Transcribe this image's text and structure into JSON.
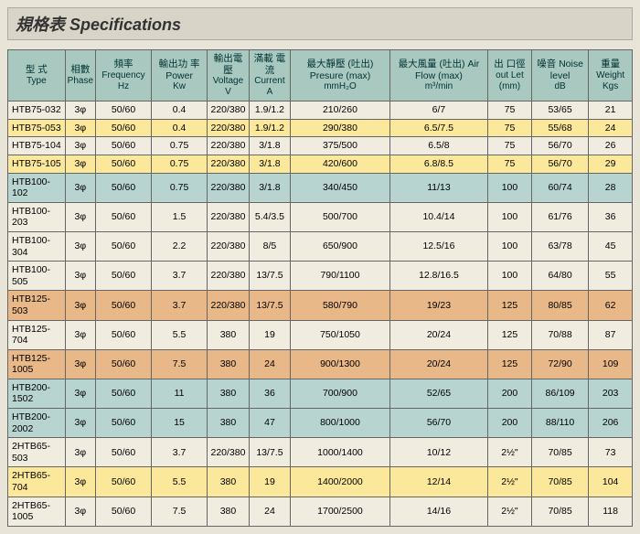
{
  "title": "規格表 Specifications",
  "headers": [
    {
      "cn": "型 式",
      "en": "Type"
    },
    {
      "cn": "相數",
      "en": "Phase"
    },
    {
      "cn": "頻率",
      "en": "Frequency Hz"
    },
    {
      "cn": "輸出功 率Power",
      "en": "Kw"
    },
    {
      "cn": "輸出電壓",
      "en": "Voltage V"
    },
    {
      "cn": "滿載 電流",
      "en": "Current A"
    },
    {
      "cn": "最大靜壓 (吐出) Presure (max)",
      "en": "mmH₂O"
    },
    {
      "cn": "最大風量 (吐出) Air Flow (max)",
      "en": "m³/min"
    },
    {
      "cn": "出 口徑",
      "en": "out Let (mm)"
    },
    {
      "cn": "噪音 Noise level",
      "en": "dB"
    },
    {
      "cn": "重量",
      "en": "Weight Kgs"
    }
  ],
  "rows": [
    {
      "cls": "white",
      "c": [
        "HTB75-032",
        "3φ",
        "50/60",
        "0.4",
        "220/380",
        "1.9/1.2",
        "210/260",
        "6/7",
        "75",
        "53/65",
        "21"
      ]
    },
    {
      "cls": "yellow",
      "c": [
        "HTB75-053",
        "3φ",
        "50/60",
        "0.4",
        "220/380",
        "1.9/1.2",
        "290/380",
        "6.5/7.5",
        "75",
        "55/68",
        "24"
      ]
    },
    {
      "cls": "white",
      "c": [
        "HTB75-104",
        "3φ",
        "50/60",
        "0.75",
        "220/380",
        "3/1.8",
        "375/500",
        "6.5/8",
        "75",
        "56/70",
        "26"
      ]
    },
    {
      "cls": "yellow",
      "c": [
        "HTB75-105",
        "3φ",
        "50/60",
        "0.75",
        "220/380",
        "3/1.8",
        "420/600",
        "6.8/8.5",
        "75",
        "56/70",
        "29"
      ]
    },
    {
      "cls": "blue",
      "c": [
        "HTB100-102",
        "3φ",
        "50/60",
        "0.75",
        "220/380",
        "3/1.8",
        "340/450",
        "11/13",
        "100",
        "60/74",
        "28"
      ]
    },
    {
      "cls": "white",
      "c": [
        "HTB100-203",
        "3φ",
        "50/60",
        "1.5",
        "220/380",
        "5.4/3.5",
        "500/700",
        "10.4/14",
        "100",
        "61/76",
        "36"
      ]
    },
    {
      "cls": "white",
      "c": [
        "HTB100-304",
        "3φ",
        "50/60",
        "2.2",
        "220/380",
        "8/5",
        "650/900",
        "12.5/16",
        "100",
        "63/78",
        "45"
      ]
    },
    {
      "cls": "white",
      "c": [
        "HTB100-505",
        "3φ",
        "50/60",
        "3.7",
        "220/380",
        "13/7.5",
        "790/1100",
        "12.8/16.5",
        "100",
        "64/80",
        "55"
      ]
    },
    {
      "cls": "orange",
      "c": [
        "HTB125-503",
        "3φ",
        "50/60",
        "3.7",
        "220/380",
        "13/7.5",
        "580/790",
        "19/23",
        "125",
        "80/85",
        "62"
      ]
    },
    {
      "cls": "white",
      "c": [
        "HTB125-704",
        "3φ",
        "50/60",
        "5.5",
        "380",
        "19",
        "750/1050",
        "20/24",
        "125",
        "70/88",
        "87"
      ]
    },
    {
      "cls": "orange",
      "c": [
        "HTB125-1005",
        "3φ",
        "50/60",
        "7.5",
        "380",
        "24",
        "900/1300",
        "20/24",
        "125",
        "72/90",
        "109"
      ]
    },
    {
      "cls": "blue",
      "c": [
        "HTB200-1502",
        "3φ",
        "50/60",
        "11",
        "380",
        "36",
        "700/900",
        "52/65",
        "200",
        "86/109",
        "203"
      ]
    },
    {
      "cls": "blue",
      "c": [
        "HTB200-2002",
        "3φ",
        "50/60",
        "15",
        "380",
        "47",
        "800/1000",
        "56/70",
        "200",
        "88/110",
        "206"
      ]
    },
    {
      "cls": "white",
      "c": [
        "2HTB65-503",
        "3φ",
        "50/60",
        "3.7",
        "220/380",
        "13/7.5",
        "1000/1400",
        "10/12",
        "2½\"",
        "70/85",
        "73"
      ]
    },
    {
      "cls": "yellow",
      "c": [
        "2HTB65-704",
        "3φ",
        "50/60",
        "5.5",
        "380",
        "19",
        "1400/2000",
        "12/14",
        "2½\"",
        "70/85",
        "104"
      ]
    },
    {
      "cls": "white",
      "c": [
        "2HTB65-1005",
        "3φ",
        "50/60",
        "7.5",
        "380",
        "24",
        "1700/2500",
        "14/16",
        "2½\"",
        "70/85",
        "118"
      ]
    }
  ]
}
